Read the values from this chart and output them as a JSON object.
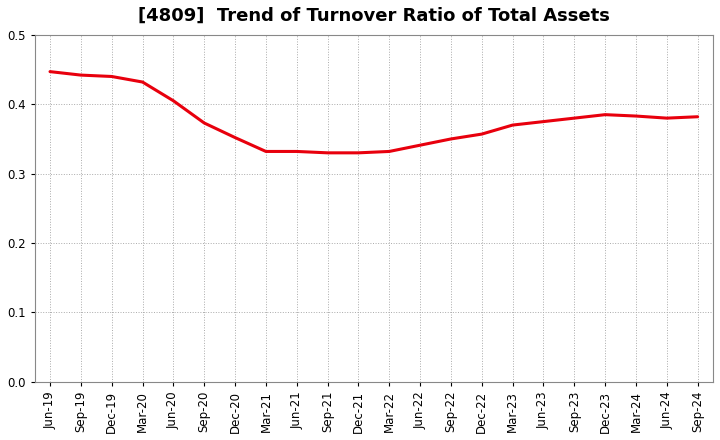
{
  "title": "[4809]  Trend of Turnover Ratio of Total Assets",
  "x_labels": [
    "Jun-19",
    "Sep-19",
    "Dec-19",
    "Mar-20",
    "Jun-20",
    "Sep-20",
    "Dec-20",
    "Mar-21",
    "Jun-21",
    "Sep-21",
    "Dec-21",
    "Mar-22",
    "Jun-22",
    "Sep-22",
    "Dec-22",
    "Mar-23",
    "Jun-23",
    "Sep-23",
    "Dec-23",
    "Mar-24",
    "Jun-24",
    "Sep-24"
  ],
  "values": [
    0.447,
    0.442,
    0.44,
    0.432,
    0.405,
    0.373,
    0.352,
    0.332,
    0.332,
    0.33,
    0.33,
    0.332,
    0.341,
    0.35,
    0.357,
    0.37,
    0.375,
    0.38,
    0.385,
    0.383,
    0.38,
    0.382
  ],
  "line_color": "#e8000d",
  "line_width": 2.2,
  "ylim": [
    0.0,
    0.5
  ],
  "yticks": [
    0.0,
    0.1,
    0.2,
    0.3,
    0.4,
    0.5
  ],
  "grid_color": "#aaaaaa",
  "grid_style": "dotted",
  "background_color": "#ffffff",
  "title_fontsize": 13,
  "tick_fontsize": 8.5
}
